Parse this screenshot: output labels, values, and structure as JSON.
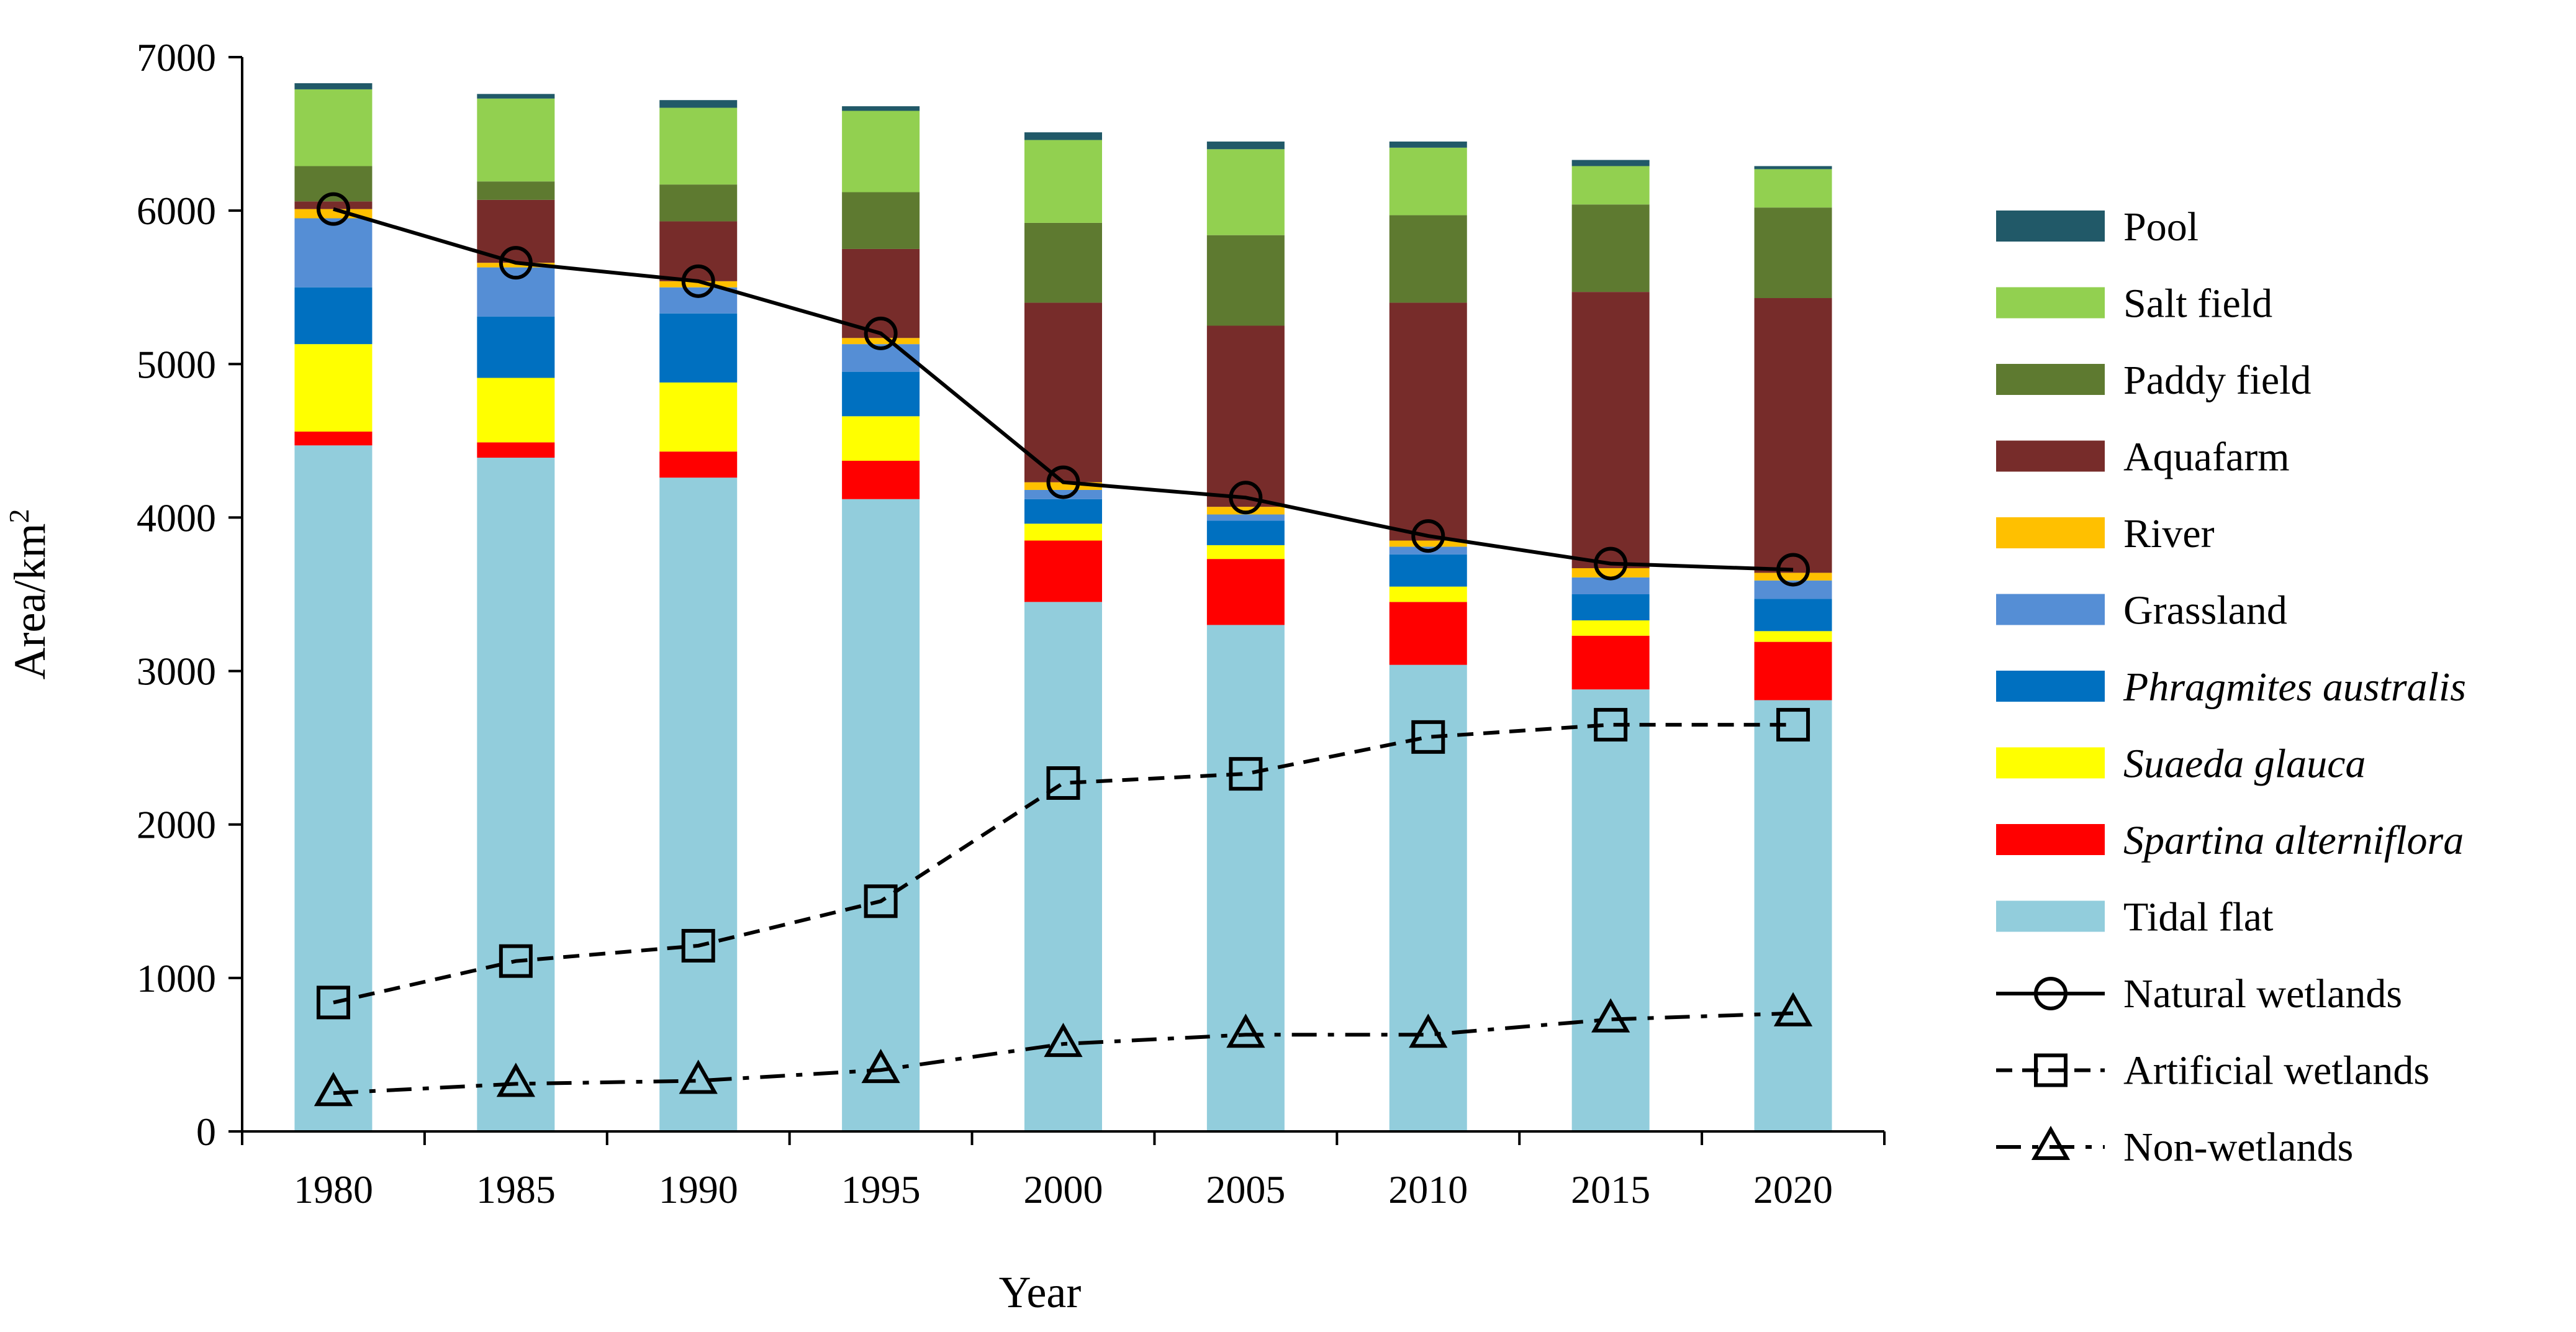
{
  "chart_data": {
    "type": "bar",
    "stacked": true,
    "xlabel": "Year",
    "ylabel": "Area/km",
    "ylabel_superscript": "2",
    "ylim": [
      0,
      7000
    ],
    "yticks": [
      0,
      1000,
      2000,
      3000,
      4000,
      5000,
      6000,
      7000
    ],
    "grid": false,
    "legend": "right",
    "categories": [
      "1980",
      "1985",
      "1990",
      "1995",
      "2000",
      "2005",
      "2010",
      "2015",
      "2020"
    ],
    "series": [
      {
        "name": "Tidal flat",
        "color": "#92cddc",
        "italic": false,
        "values": [
          4470,
          4390,
          4260,
          4120,
          3450,
          3300,
          3040,
          2880,
          2810
        ]
      },
      {
        "name": "Spartina alterniflora",
        "color": "#ff0000",
        "italic": true,
        "values": [
          90,
          100,
          170,
          250,
          400,
          430,
          410,
          350,
          380
        ]
      },
      {
        "name": "Suaeda glauca",
        "color": "#ffff00",
        "italic": true,
        "values": [
          570,
          420,
          450,
          290,
          110,
          90,
          100,
          100,
          70
        ]
      },
      {
        "name": "Phragmites australis",
        "color": "#0070c0",
        "italic": true,
        "values": [
          370,
          400,
          450,
          290,
          160,
          160,
          210,
          170,
          210
        ]
      },
      {
        "name": "Grassland",
        "color": "#558ed5",
        "italic": false,
        "values": [
          450,
          320,
          170,
          180,
          60,
          40,
          50,
          110,
          120
        ]
      },
      {
        "name": "River",
        "color": "#ffc000",
        "italic": false,
        "values": [
          60,
          30,
          40,
          40,
          50,
          50,
          40,
          60,
          50
        ]
      },
      {
        "name": "Aquafarm",
        "color": "#772c2a",
        "italic": false,
        "values": [
          50,
          410,
          390,
          580,
          1170,
          1180,
          1550,
          1800,
          1790
        ]
      },
      {
        "name": "Paddy field",
        "color": "#5e7a30",
        "italic": false,
        "values": [
          230,
          120,
          240,
          370,
          520,
          590,
          570,
          570,
          590
        ]
      },
      {
        "name": "Salt field",
        "color": "#92d050",
        "italic": false,
        "values": [
          500,
          540,
          500,
          530,
          540,
          560,
          440,
          250,
          250
        ]
      },
      {
        "name": "Pool",
        "color": "#215968",
        "italic": false,
        "values": [
          40,
          30,
          50,
          30,
          50,
          50,
          40,
          40,
          20
        ]
      }
    ],
    "lines": [
      {
        "name": "Natural wetlands",
        "marker": "circle",
        "dash": "solid",
        "values": [
          6010,
          5660,
          5540,
          5200,
          4230,
          4130,
          3880,
          3700,
          3660
        ]
      },
      {
        "name": "Artificial wetlands",
        "marker": "square",
        "dash": "dashed",
        "values": [
          840,
          1110,
          1210,
          1500,
          2270,
          2330,
          2570,
          2650,
          2650
        ]
      },
      {
        "name": "Non-wetlands",
        "marker": "triangle",
        "dash": "dashdot",
        "values": [
          250,
          310,
          330,
          400,
          570,
          630,
          630,
          730,
          770
        ]
      }
    ]
  }
}
